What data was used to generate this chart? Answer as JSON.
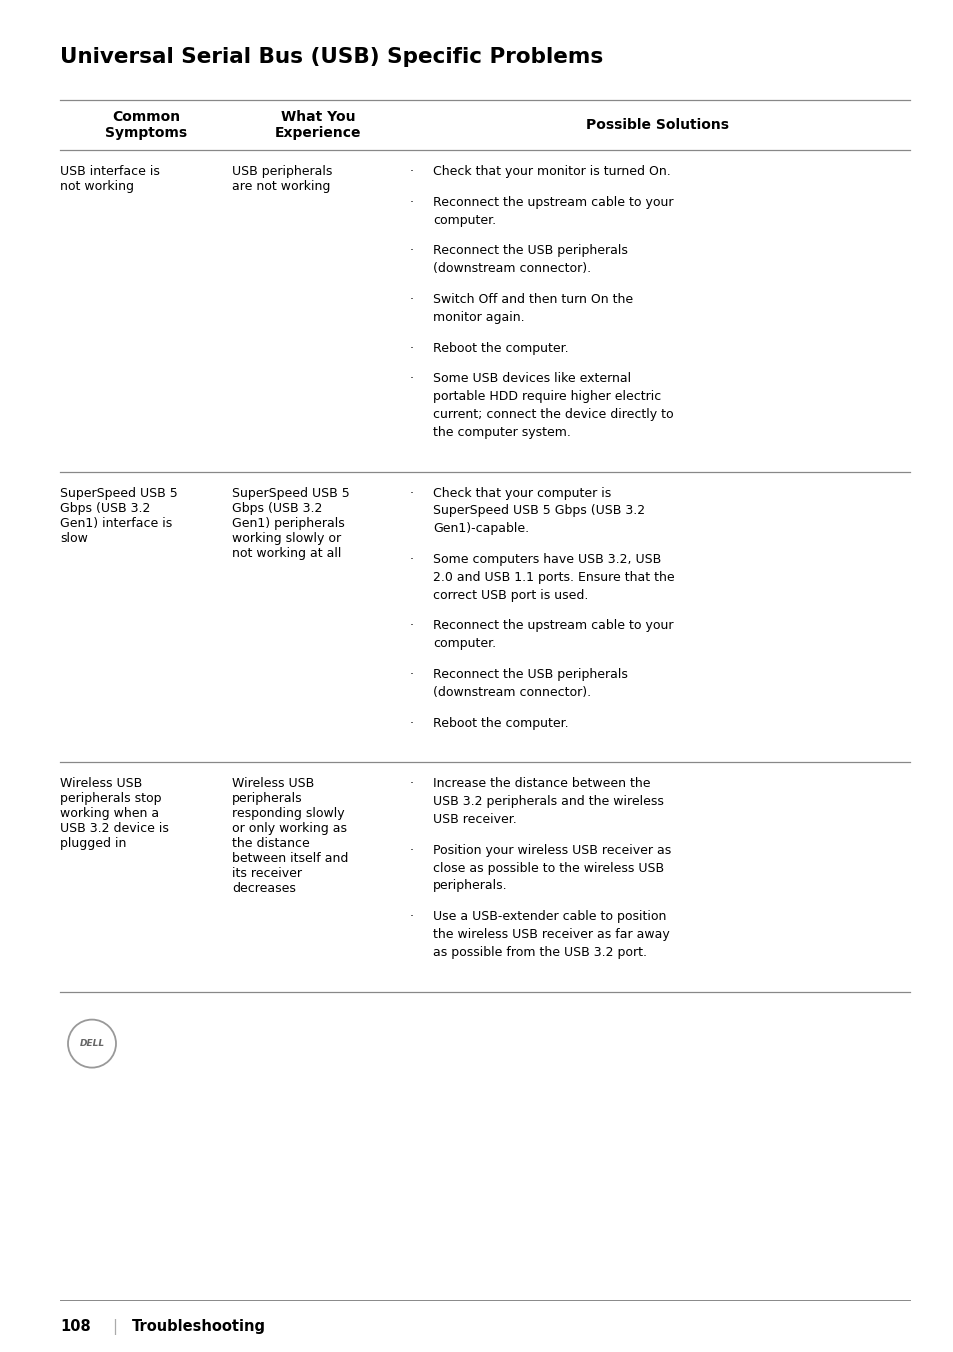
{
  "title": "Universal Serial Bus (USB) Specific Problems",
  "col_headers": [
    "Common\nSymptoms",
    "What You\nExperience",
    "Possible Solutions"
  ],
  "bg_color": "#ffffff",
  "text_color": "#000000",
  "title_fontsize": 15.5,
  "header_fontsize": 10,
  "body_fontsize": 9.0,
  "rows": [
    {
      "symptom": "USB interface is\nnot working",
      "experience": "USB peripherals\nare not working",
      "solutions": [
        "Check that your monitor is turned On.",
        "Reconnect the upstream cable to your\ncomputer.",
        "Reconnect the USB peripherals\n(downstream connector).",
        "Switch Off and then turn On the\nmonitor again.",
        "Reboot the computer.",
        "Some USB devices like external\nportable HDD require higher electric\ncurrent; connect the device directly to\nthe computer system."
      ]
    },
    {
      "symptom": "SuperSpeed USB 5\nGbps (USB 3.2\nGen1) interface is\nslow",
      "experience": "SuperSpeed USB 5\nGbps (USB 3.2\nGen1) peripherals\nworking slowly or\nnot working at all",
      "solutions": [
        "Check that your computer is\nSuperSpeed USB 5 Gbps (USB 3.2\nGen1)-capable.",
        "Some computers have USB 3.2, USB\n2.0 and USB 1.1 ports. Ensure that the\ncorrect USB port is used.",
        "Reconnect the upstream cable to your\ncomputer.",
        "Reconnect the USB peripherals\n(downstream connector).",
        "Reboot the computer."
      ]
    },
    {
      "symptom": "Wireless USB\nperipherals stop\nworking when a\nUSB 3.2 device is\nplugged in",
      "experience": "Wireless USB\nperipherals\nresponding slowly\nor only working as\nthe distance\nbetween itself and\nits receiver\ndecreases",
      "solutions": [
        "Increase the distance between the\nUSB 3.2 peripherals and the wireless\nUSB receiver.",
        "Position your wireless USB receiver as\nclose as possible to the wireless USB\nperipherals.",
        "Use a USB-extender cable to position\nthe wireless USB receiver as far away\nas possible from the USB 3.2 port."
      ]
    }
  ]
}
